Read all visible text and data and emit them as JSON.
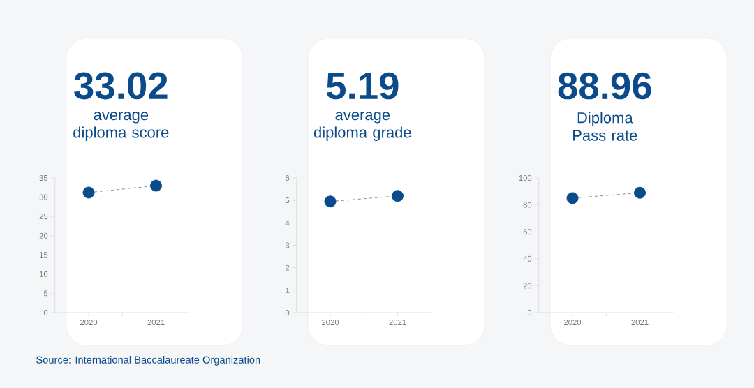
{
  "chart_data": [
    {
      "type": "line",
      "title": "33.02",
      "subtitle": "average diploma score",
      "categories": [
        "2020",
        "2021"
      ],
      "series": [
        {
          "color": "#0b4a8b",
          "values": [
            31.2,
            33.0
          ]
        }
      ],
      "ylim": [
        0,
        35
      ],
      "yticks": [
        0,
        5,
        10,
        15,
        20,
        25,
        30,
        35
      ],
      "marker": "circle",
      "line_style": "dashed",
      "annotations": [
        "Source: International Baccalaureate Organization"
      ]
    },
    {
      "type": "line",
      "title": "5.19",
      "subtitle": "average diploma grade",
      "categories": [
        "2020",
        "2021"
      ],
      "series": [
        {
          "color": "#0b4a8b",
          "values": [
            4.95,
            5.2
          ]
        }
      ],
      "ylim": [
        0,
        6
      ],
      "yticks": [
        0,
        1,
        2,
        3,
        4,
        5,
        6
      ],
      "marker": "circle",
      "line_style": "dashed"
    },
    {
      "type": "line",
      "title": "88.96",
      "subtitle": "Diploma Pass rate",
      "categories": [
        "2020",
        "2021"
      ],
      "series": [
        {
          "color": "#0b4a8b",
          "values": [
            85,
            89
          ]
        }
      ],
      "ylim": [
        0,
        100
      ],
      "yticks": [
        0,
        20,
        40,
        60,
        80,
        100
      ],
      "marker": "circle",
      "line_style": "dashed"
    }
  ]
}
